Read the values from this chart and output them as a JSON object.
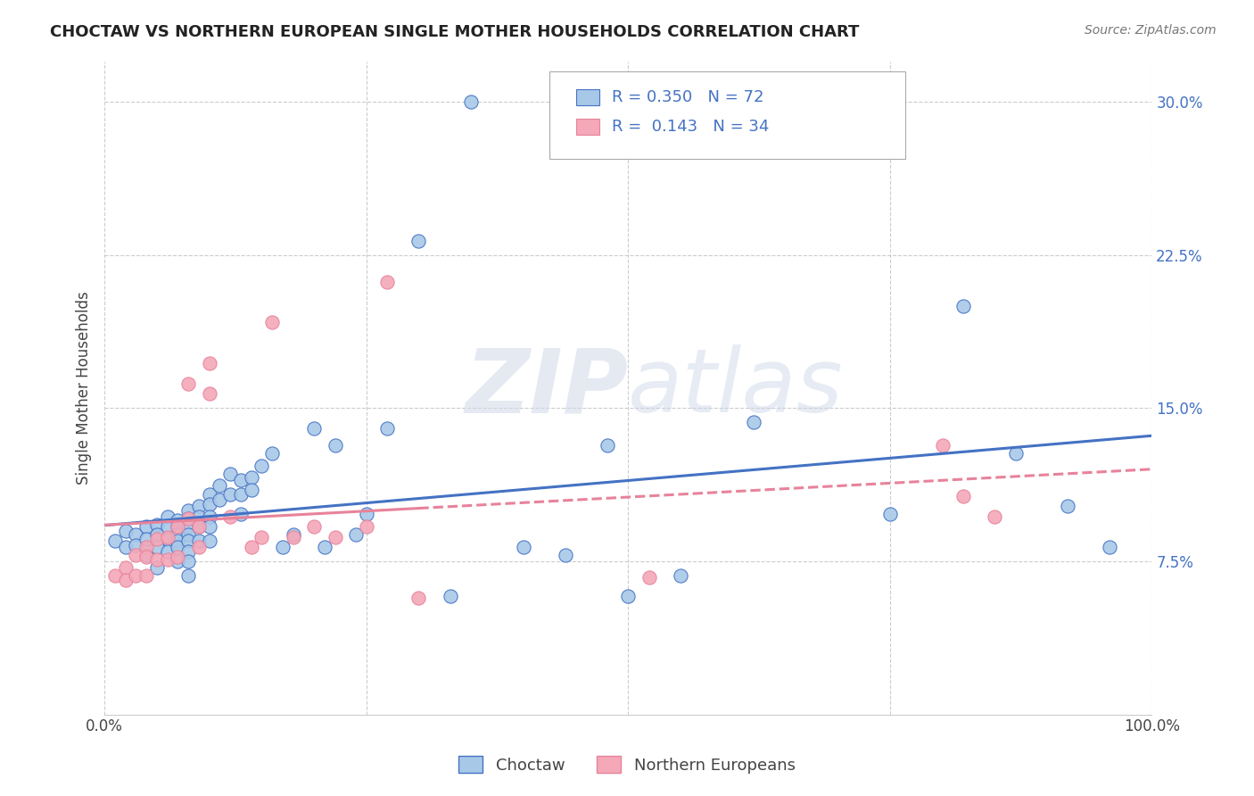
{
  "title": "CHOCTAW VS NORTHERN EUROPEAN SINGLE MOTHER HOUSEHOLDS CORRELATION CHART",
  "source": "Source: ZipAtlas.com",
  "ylabel": "Single Mother Households",
  "yticks": [
    "7.5%",
    "15.0%",
    "22.5%",
    "30.0%"
  ],
  "ytick_vals": [
    0.075,
    0.15,
    0.225,
    0.3
  ],
  "xlim": [
    0.0,
    1.0
  ],
  "ylim": [
    0.0,
    0.32
  ],
  "legend_R1": "R = 0.350",
  "legend_N1": "N = 72",
  "legend_R2": "R =  0.143",
  "legend_N2": "N = 34",
  "legend_label1": "Choctaw",
  "legend_label2": "Northern Europeans",
  "color_blue": "#A8C8E8",
  "color_pink": "#F4A8B8",
  "color_blue_line": "#4472C4",
  "color_pink_line": "#E8829A",
  "watermark_zip": "ZIP",
  "watermark_atlas": "atlas",
  "choctaw_x": [
    0.01,
    0.02,
    0.02,
    0.03,
    0.03,
    0.04,
    0.04,
    0.04,
    0.05,
    0.05,
    0.05,
    0.05,
    0.06,
    0.06,
    0.06,
    0.06,
    0.07,
    0.07,
    0.07,
    0.07,
    0.07,
    0.07,
    0.08,
    0.08,
    0.08,
    0.08,
    0.08,
    0.08,
    0.08,
    0.08,
    0.09,
    0.09,
    0.09,
    0.09,
    0.1,
    0.1,
    0.1,
    0.1,
    0.1,
    0.11,
    0.11,
    0.12,
    0.12,
    0.13,
    0.13,
    0.13,
    0.14,
    0.14,
    0.15,
    0.16,
    0.17,
    0.18,
    0.2,
    0.21,
    0.22,
    0.24,
    0.25,
    0.27,
    0.3,
    0.33,
    0.35,
    0.4,
    0.44,
    0.48,
    0.5,
    0.55,
    0.62,
    0.75,
    0.82,
    0.87,
    0.92,
    0.96
  ],
  "choctaw_y": [
    0.085,
    0.09,
    0.082,
    0.088,
    0.083,
    0.092,
    0.086,
    0.078,
    0.093,
    0.088,
    0.082,
    0.072,
    0.097,
    0.092,
    0.086,
    0.08,
    0.095,
    0.092,
    0.088,
    0.085,
    0.082,
    0.075,
    0.1,
    0.096,
    0.092,
    0.088,
    0.085,
    0.08,
    0.075,
    0.068,
    0.102,
    0.097,
    0.092,
    0.085,
    0.108,
    0.103,
    0.097,
    0.092,
    0.085,
    0.112,
    0.105,
    0.118,
    0.108,
    0.115,
    0.108,
    0.098,
    0.116,
    0.11,
    0.122,
    0.128,
    0.082,
    0.088,
    0.14,
    0.082,
    0.132,
    0.088,
    0.098,
    0.14,
    0.232,
    0.058,
    0.3,
    0.082,
    0.078,
    0.132,
    0.058,
    0.068,
    0.143,
    0.098,
    0.2,
    0.128,
    0.102,
    0.082
  ],
  "northern_x": [
    0.01,
    0.02,
    0.02,
    0.03,
    0.03,
    0.04,
    0.04,
    0.04,
    0.05,
    0.05,
    0.06,
    0.06,
    0.07,
    0.07,
    0.08,
    0.08,
    0.09,
    0.09,
    0.1,
    0.1,
    0.12,
    0.14,
    0.15,
    0.16,
    0.18,
    0.2,
    0.22,
    0.25,
    0.27,
    0.3,
    0.52,
    0.8,
    0.82,
    0.85
  ],
  "northern_y": [
    0.068,
    0.072,
    0.066,
    0.078,
    0.068,
    0.082,
    0.077,
    0.068,
    0.086,
    0.076,
    0.087,
    0.076,
    0.092,
    0.077,
    0.096,
    0.162,
    0.092,
    0.082,
    0.172,
    0.157,
    0.097,
    0.082,
    0.087,
    0.192,
    0.087,
    0.092,
    0.087,
    0.092,
    0.212,
    0.057,
    0.067,
    0.132,
    0.107,
    0.097
  ]
}
